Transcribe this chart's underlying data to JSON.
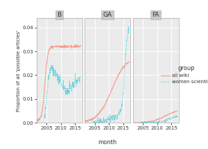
{
  "panels": [
    "B",
    "GA",
    "FA"
  ],
  "ylim": [
    0,
    0.044
  ],
  "yticks": [
    0.0,
    0.01,
    0.02,
    0.03,
    0.04
  ],
  "ytick_labels": [
    "0.00",
    "0.01",
    "0.02",
    "0.03",
    "0.04"
  ],
  "xlabel": "month",
  "ylabel": "Proportion of all 'possible articles'",
  "color_wiki": "#F4A090",
  "color_women": "#44CCD8",
  "bg_panel": "#EBEBEB",
  "bg_strip": "#C8C8C8",
  "grid_color": "#FFFFFF",
  "legend_title": "group",
  "legend_wiki": "all wiki",
  "legend_women": "women scientist",
  "x_ticks": [
    2005,
    2010,
    2015
  ],
  "figsize": [
    3.0,
    2.15
  ],
  "dpi": 100
}
